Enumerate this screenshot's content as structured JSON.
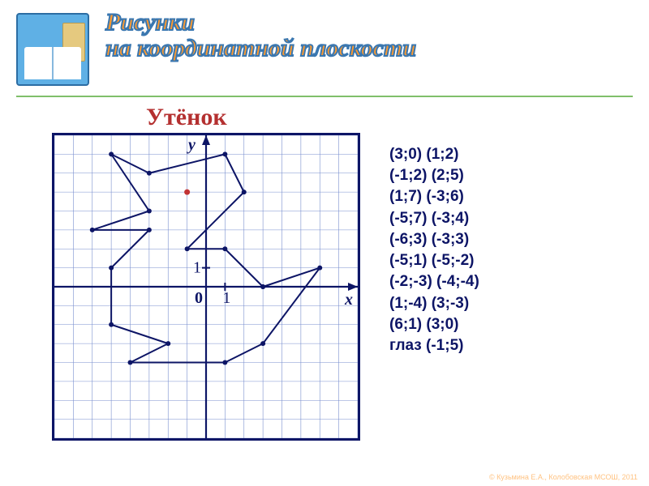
{
  "header": {
    "title_line1": "Рисунки",
    "title_line2": "на координатной плоскости"
  },
  "chart": {
    "label": "Утёнок",
    "type": "line",
    "x_axis_label": "x",
    "y_axis_label": "y",
    "origin_label": "0",
    "tick_label_x": "1",
    "tick_label_y": "1",
    "xlim": [
      -8,
      8
    ],
    "ylim": [
      -8,
      8
    ],
    "grid_step": 1,
    "background_color": "#ffffff",
    "grid_color": "#7a8fcf",
    "axis_color": "#0d1566",
    "polyline_color": "#0d1566",
    "polyline_width": 2,
    "marker_radius": 3,
    "marker_fill": "#0d1566",
    "eye_color": "#c23434",
    "closed": true,
    "points": [
      [
        3,
        0
      ],
      [
        1,
        2
      ],
      [
        -1,
        2
      ],
      [
        2,
        5
      ],
      [
        1,
        7
      ],
      [
        -3,
        6
      ],
      [
        -5,
        7
      ],
      [
        -3,
        4
      ],
      [
        -6,
        3
      ],
      [
        -3,
        3
      ],
      [
        -5,
        1
      ],
      [
        -5,
        -2
      ],
      [
        -2,
        -3
      ],
      [
        -4,
        -4
      ],
      [
        1,
        -4
      ],
      [
        3,
        -3
      ],
      [
        6,
        1
      ],
      [
        3,
        0
      ]
    ],
    "eye": [
      -1,
      5
    ]
  },
  "coords_text": "(3;0) (1;2)\n(-1;2) (2;5)\n(1;7) (-3;6)\n(-5;7) (-3;4)\n(-6;3) (-3;3)\n(-5;1) (-5;-2)\n(-2;-3) (-4;-4)\n(1;-4) (3;-3)\n(6;1) (3;0)\nглаз (-1;5)",
  "styling": {
    "title_color": "#ff9a2e",
    "title_stroke": "#3a77b0",
    "title_fontsize": 30,
    "chart_title_color": "#b43030",
    "chart_title_fontsize": 30,
    "coords_color": "#0d1566",
    "coords_fontsize": 19,
    "divider_color": "#7fbf6a",
    "border_color": "#0d1566"
  },
  "footer": {
    "credit": "© Кузьмина Е.А., Колобовская МСОШ, 2011"
  }
}
